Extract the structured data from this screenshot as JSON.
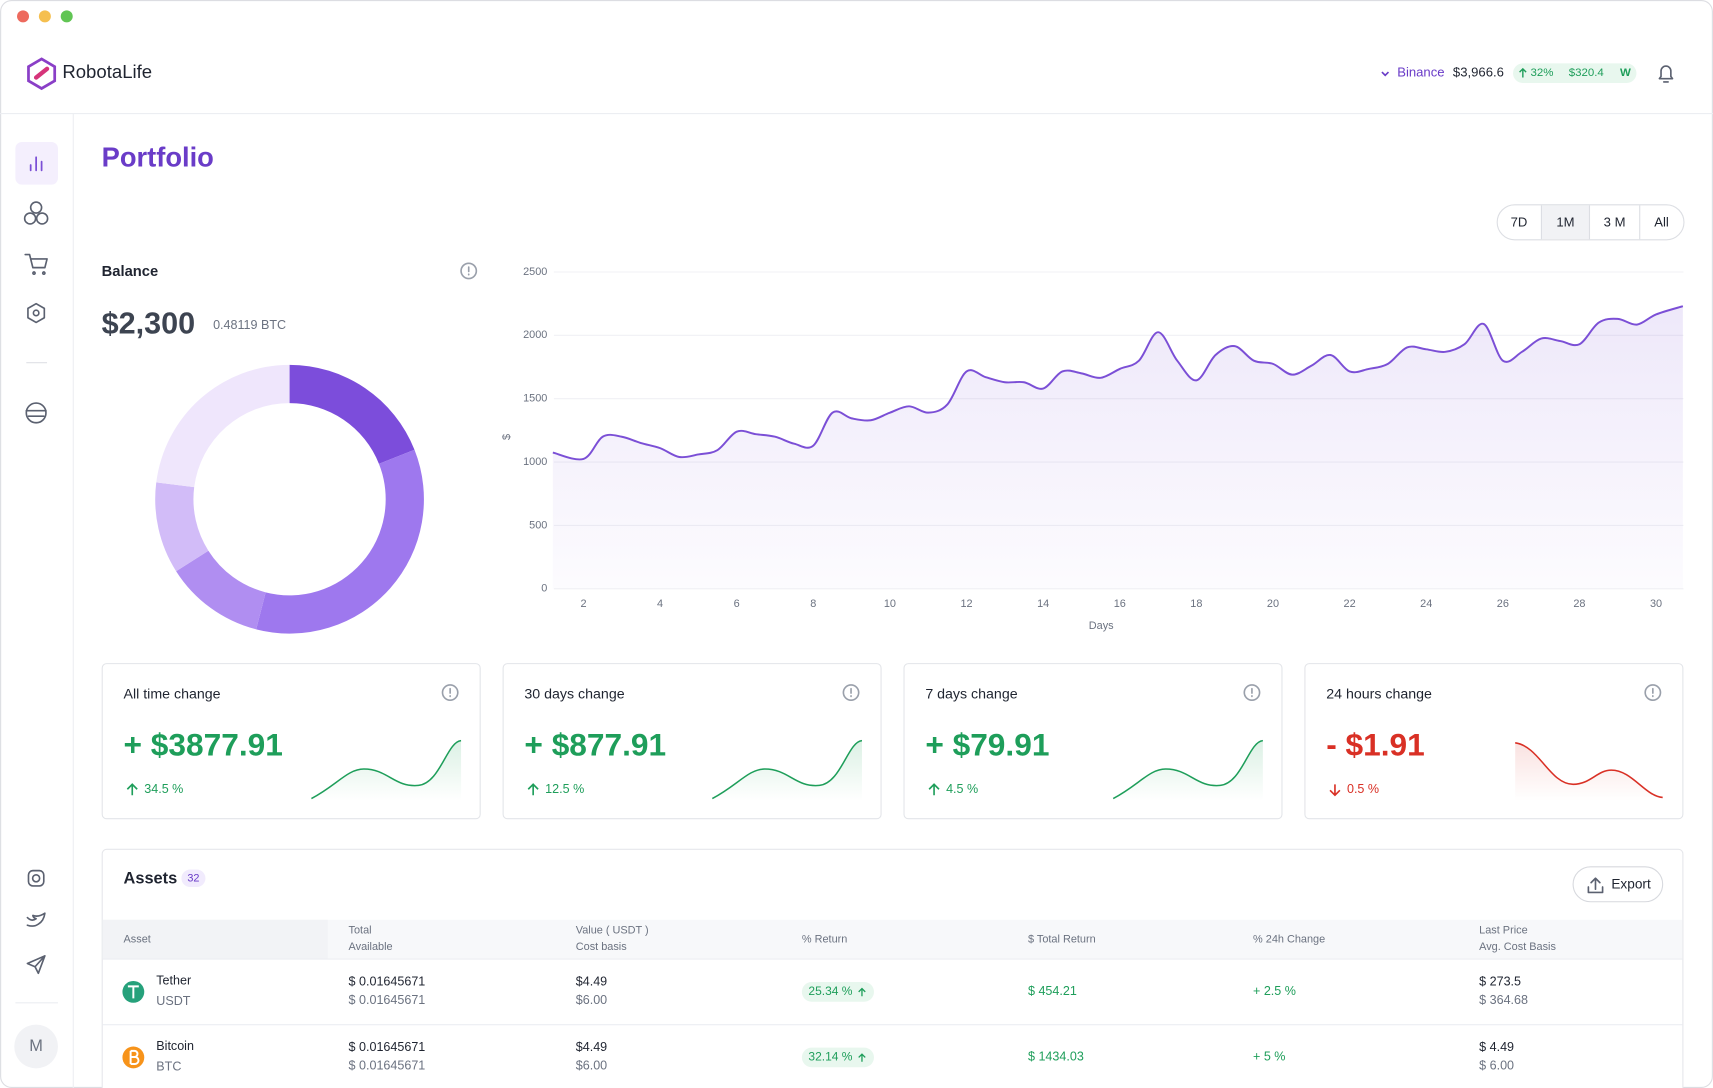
{
  "header": {
    "brand": "RobotaLife",
    "exchange": "Binance",
    "price": "$3,966.6",
    "change": "32%",
    "profit": "$320.4",
    "badge": "W"
  },
  "sidebar": {
    "avatar": "M"
  },
  "page_title": "Portfolio",
  "range_buttons": [
    "7D",
    "1M",
    "3 M",
    "All"
  ],
  "active_range": 1,
  "balance": {
    "title": "Balance",
    "amount": "$2,300",
    "btc": "0.48119 BTC",
    "donut": {
      "type": "pie",
      "values": [
        19,
        35,
        12,
        11,
        23
      ],
      "colors": [
        "#7c4ddb",
        "#9e78ee",
        "#b08ef1",
        "#d2bcf8",
        "#efe6fc"
      ]
    }
  },
  "chart_data": {
    "type": "line",
    "xlabel": "Days",
    "ylabel": "$",
    "x": [
      1.2,
      2,
      2.5,
      3,
      3.5,
      4,
      4.5,
      5,
      5.5,
      6,
      6.5,
      7,
      7.5,
      8,
      8.5,
      9,
      9.5,
      10,
      10.5,
      11,
      11.5,
      12,
      12.5,
      13,
      13.5,
      14,
      14.5,
      15,
      15.5,
      16,
      16.5,
      17,
      17.5,
      18,
      18.5,
      19,
      19.5,
      20,
      20.5,
      21,
      21.5,
      22,
      22.5,
      23,
      23.5,
      24,
      24.5,
      25,
      25.5,
      26,
      26.5,
      27,
      27.5,
      28,
      28.5,
      29,
      29.5,
      30,
      30.7
    ],
    "values": [
      1075,
      1025,
      1200,
      1200,
      1150,
      1110,
      1040,
      1060,
      1095,
      1240,
      1220,
      1200,
      1145,
      1130,
      1390,
      1345,
      1330,
      1390,
      1440,
      1390,
      1455,
      1715,
      1670,
      1630,
      1630,
      1580,
      1715,
      1700,
      1665,
      1735,
      1800,
      2025,
      1800,
      1645,
      1845,
      1915,
      1800,
      1775,
      1690,
      1760,
      1845,
      1715,
      1735,
      1775,
      1905,
      1890,
      1870,
      1930,
      2090,
      1800,
      1870,
      1975,
      1955,
      1930,
      2100,
      2130,
      2085,
      2165,
      2230
    ],
    "xlim": [
      1,
      30.8
    ],
    "ylim": [
      0,
      2500
    ],
    "xticks": [
      2,
      4,
      6,
      8,
      10,
      12,
      14,
      16,
      18,
      20,
      22,
      24,
      26,
      28,
      30
    ],
    "yticks": [
      0,
      500,
      1000,
      1500,
      2000,
      2500
    ],
    "color": "#7b4fd6",
    "grid": true
  },
  "change_cards": [
    {
      "title": "All time change",
      "amount": "+ $3877.91",
      "percent": "34.5 %",
      "direction": "up"
    },
    {
      "title": "30 days change",
      "amount": "+ $877.91",
      "percent": "12.5 %",
      "direction": "up"
    },
    {
      "title": "7 days change",
      "amount": "+ $79.91",
      "percent": "4.5 %",
      "direction": "up"
    },
    {
      "title": "24 hours change",
      "amount": "- $1.91",
      "percent": "0.5 %",
      "direction": "down"
    }
  ],
  "assets": {
    "title": "Assets",
    "count": 32,
    "export": "Export",
    "columns": [
      [
        "Asset"
      ],
      [
        "Total",
        "Available"
      ],
      [
        "Value ( USDT )",
        "Cost basis"
      ],
      [
        "% Return"
      ],
      [
        "$ Total Return"
      ],
      [
        "% 24h Change"
      ],
      [
        "Last Price",
        "Avg. Cost Basis"
      ]
    ],
    "rows": [
      {
        "name": "Tether",
        "symbol": "USDT",
        "total": "$ 0.01645671",
        "available": "$ 0.01645671",
        "value": "$4.49",
        "cost": "$6.00",
        "return": "25.34 %",
        "total_return": "$ 454.21",
        "change_24h": "+ 2.5 %",
        "last_price": "$ 273.5",
        "avg_cost": "$ 364.68"
      },
      {
        "name": "Bitcoin",
        "symbol": "BTC",
        "total": "$ 0.01645671",
        "available": "$ 0.01645671",
        "value": "$4.49",
        "cost": "$6.00",
        "return": "32.14 %",
        "total_return": "$ 1434.03",
        "change_24h": "+ 5 %",
        "last_price": "$ 4.49",
        "avg_cost": "$ 6.00"
      }
    ]
  }
}
